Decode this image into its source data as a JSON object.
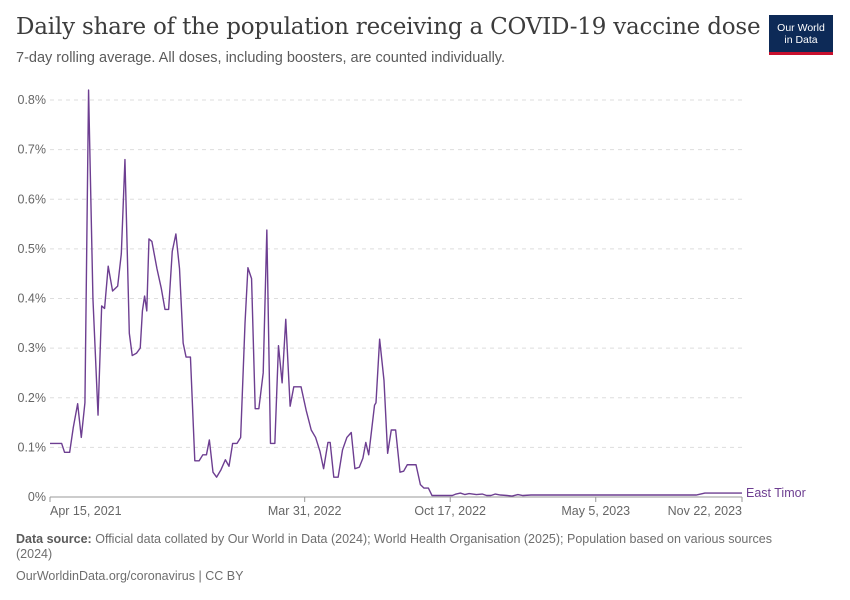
{
  "header": {
    "title": "Daily share of the population receiving a COVID-19 vaccine dose",
    "subtitle": "7-day rolling average. All doses, including boosters, are counted individually.",
    "logo_line1": "Our World",
    "logo_line2": "in Data"
  },
  "footer": {
    "source_label": "Data source:",
    "source_text": "Official data collated by Our World in Data (2024); World Health Organisation (2025); Population based on various sources (2024)",
    "license": "OurWorldinData.org/coronavirus | CC BY"
  },
  "colors": {
    "series": "#6d3e91",
    "grid": "#dddddd",
    "axis": "#999999",
    "logo_bg": "#0d2a57",
    "logo_accent": "#c8102e"
  },
  "chart_data": {
    "type": "line",
    "title": "Daily share of the population receiving a COVID-19 vaccine dose",
    "ylim": [
      0,
      0.8
    ],
    "y_ticks": [
      {
        "value": 0,
        "label": "0%"
      },
      {
        "value": 0.1,
        "label": "0.1%"
      },
      {
        "value": 0.2,
        "label": "0.2%"
      },
      {
        "value": 0.3,
        "label": "0.3%"
      },
      {
        "value": 0.4,
        "label": "0.4%"
      },
      {
        "value": 0.5,
        "label": "0.5%"
      },
      {
        "value": 0.6,
        "label": "0.6%"
      },
      {
        "value": 0.7,
        "label": "0.7%"
      },
      {
        "value": 0.8,
        "label": "0.8%"
      }
    ],
    "xlim": [
      "2021-04-15",
      "2023-11-22"
    ],
    "x_ticks": [
      {
        "date": "2021-04-15",
        "label": "Apr 15, 2021"
      },
      {
        "date": "2022-03-31",
        "label": "Mar 31, 2022"
      },
      {
        "date": "2022-10-17",
        "label": "Oct 17, 2022"
      },
      {
        "date": "2023-05-05",
        "label": "May 5, 2023"
      },
      {
        "date": "2023-11-22",
        "label": "Nov 22, 2023"
      }
    ],
    "grid": "horizontal dashed",
    "series": [
      {
        "name": "East Timor",
        "points": [
          [
            "2021-04-15",
            0.108
          ],
          [
            "2021-05-01",
            0.108
          ],
          [
            "2021-05-05",
            0.09
          ],
          [
            "2021-05-12",
            0.09
          ],
          [
            "2021-05-17",
            0.14
          ],
          [
            "2021-05-23",
            0.188
          ],
          [
            "2021-05-28",
            0.12
          ],
          [
            "2021-06-02",
            0.19
          ],
          [
            "2021-06-07",
            0.82
          ],
          [
            "2021-06-13",
            0.4
          ],
          [
            "2021-06-20",
            0.165
          ],
          [
            "2021-06-25",
            0.385
          ],
          [
            "2021-06-29",
            0.38
          ],
          [
            "2021-07-04",
            0.465
          ],
          [
            "2021-07-10",
            0.415
          ],
          [
            "2021-07-17",
            0.425
          ],
          [
            "2021-07-22",
            0.49
          ],
          [
            "2021-07-27",
            0.68
          ],
          [
            "2021-08-02",
            0.33
          ],
          [
            "2021-08-06",
            0.285
          ],
          [
            "2021-08-12",
            0.29
          ],
          [
            "2021-08-17",
            0.3
          ],
          [
            "2021-08-20",
            0.375
          ],
          [
            "2021-08-23",
            0.405
          ],
          [
            "2021-08-26",
            0.375
          ],
          [
            "2021-08-29",
            0.52
          ],
          [
            "2021-09-02",
            0.515
          ],
          [
            "2021-09-09",
            0.46
          ],
          [
            "2021-09-15",
            0.42
          ],
          [
            "2021-09-20",
            0.378
          ],
          [
            "2021-09-25",
            0.378
          ],
          [
            "2021-09-30",
            0.495
          ],
          [
            "2021-10-05",
            0.53
          ],
          [
            "2021-10-10",
            0.46
          ],
          [
            "2021-10-15",
            0.31
          ],
          [
            "2021-10-19",
            0.282
          ],
          [
            "2021-10-25",
            0.282
          ],
          [
            "2021-10-31",
            0.073
          ],
          [
            "2021-11-06",
            0.073
          ],
          [
            "2021-11-11",
            0.085
          ],
          [
            "2021-11-16",
            0.085
          ],
          [
            "2021-11-20",
            0.115
          ],
          [
            "2021-11-25",
            0.05
          ],
          [
            "2021-11-30",
            0.04
          ],
          [
            "2021-12-06",
            0.055
          ],
          [
            "2021-12-12",
            0.075
          ],
          [
            "2021-12-17",
            0.062
          ],
          [
            "2021-12-22",
            0.108
          ],
          [
            "2021-12-28",
            0.108
          ],
          [
            "2022-01-02",
            0.12
          ],
          [
            "2022-01-08",
            0.35
          ],
          [
            "2022-01-12",
            0.462
          ],
          [
            "2022-01-17",
            0.44
          ],
          [
            "2022-01-22",
            0.178
          ],
          [
            "2022-01-27",
            0.178
          ],
          [
            "2022-02-02",
            0.25
          ],
          [
            "2022-02-07",
            0.538
          ],
          [
            "2022-02-12",
            0.108
          ],
          [
            "2022-02-18",
            0.108
          ],
          [
            "2022-02-23",
            0.305
          ],
          [
            "2022-02-28",
            0.23
          ],
          [
            "2022-03-05",
            0.358
          ],
          [
            "2022-03-11",
            0.183
          ],
          [
            "2022-03-16",
            0.222
          ],
          [
            "2022-03-20",
            0.222
          ],
          [
            "2022-03-26",
            0.222
          ],
          [
            "2022-04-02",
            0.175
          ],
          [
            "2022-04-09",
            0.135
          ],
          [
            "2022-04-15",
            0.12
          ],
          [
            "2022-04-21",
            0.092
          ],
          [
            "2022-04-26",
            0.057
          ],
          [
            "2022-05-02",
            0.11
          ],
          [
            "2022-05-05",
            0.11
          ],
          [
            "2022-05-10",
            0.04
          ],
          [
            "2022-05-16",
            0.04
          ],
          [
            "2022-05-22",
            0.095
          ],
          [
            "2022-05-28",
            0.12
          ],
          [
            "2022-06-03",
            0.13
          ],
          [
            "2022-06-08",
            0.057
          ],
          [
            "2022-06-14",
            0.06
          ],
          [
            "2022-06-19",
            0.078
          ],
          [
            "2022-06-23",
            0.11
          ],
          [
            "2022-06-27",
            0.085
          ],
          [
            "2022-07-01",
            0.135
          ],
          [
            "2022-07-05",
            0.185
          ],
          [
            "2022-07-07",
            0.19
          ],
          [
            "2022-07-12",
            0.318
          ],
          [
            "2022-07-18",
            0.235
          ],
          [
            "2022-07-23",
            0.088
          ],
          [
            "2022-07-28",
            0.135
          ],
          [
            "2022-08-03",
            0.135
          ],
          [
            "2022-08-09",
            0.05
          ],
          [
            "2022-08-14",
            0.052
          ],
          [
            "2022-08-19",
            0.065
          ],
          [
            "2022-08-25",
            0.065
          ],
          [
            "2022-08-31",
            0.065
          ],
          [
            "2022-09-06",
            0.025
          ],
          [
            "2022-09-11",
            0.018
          ],
          [
            "2022-09-17",
            0.018
          ],
          [
            "2022-09-22",
            0.003
          ],
          [
            "2022-09-30",
            0.003
          ],
          [
            "2022-10-10",
            0.003
          ],
          [
            "2022-10-20",
            0.003
          ],
          [
            "2022-10-25",
            0.006
          ],
          [
            "2022-10-31",
            0.008
          ],
          [
            "2022-11-06",
            0.005
          ],
          [
            "2022-11-12",
            0.007
          ],
          [
            "2022-11-22",
            0.005
          ],
          [
            "2022-11-30",
            0.006
          ],
          [
            "2022-12-06",
            0.003
          ],
          [
            "2022-12-12",
            0.003
          ],
          [
            "2022-12-18",
            0.006
          ],
          [
            "2022-12-25",
            0.004
          ],
          [
            "2023-01-03",
            0.003
          ],
          [
            "2023-01-10",
            0.002
          ],
          [
            "2023-01-18",
            0.005
          ],
          [
            "2023-01-25",
            0.003
          ],
          [
            "2023-02-05",
            0.004
          ],
          [
            "2023-02-15",
            0.004
          ],
          [
            "2023-03-01",
            0.004
          ],
          [
            "2023-03-20",
            0.004
          ],
          [
            "2023-04-10",
            0.004
          ],
          [
            "2023-05-05",
            0.004
          ],
          [
            "2023-06-01",
            0.004
          ],
          [
            "2023-07-01",
            0.004
          ],
          [
            "2023-08-01",
            0.004
          ],
          [
            "2023-09-01",
            0.004
          ],
          [
            "2023-09-20",
            0.004
          ],
          [
            "2023-10-02",
            0.008
          ],
          [
            "2023-10-15",
            0.008
          ],
          [
            "2023-11-01",
            0.008
          ],
          [
            "2023-11-22",
            0.008
          ]
        ]
      }
    ]
  }
}
